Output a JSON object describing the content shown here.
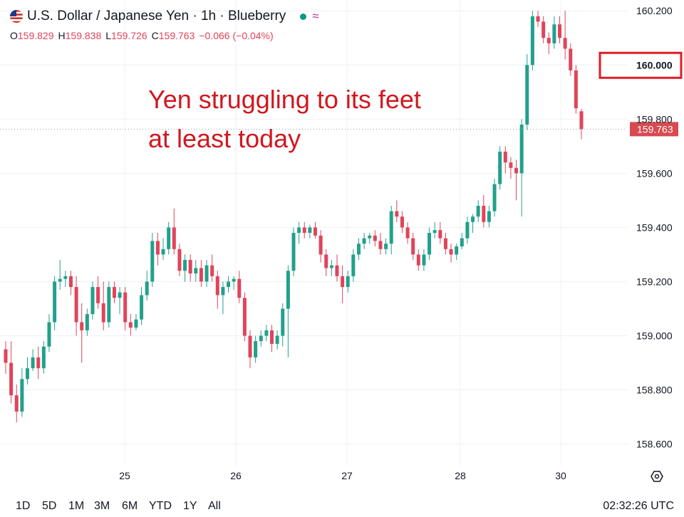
{
  "header": {
    "title": "U.S. Dollar / Japanese Yen · 1h · Blueberry",
    "status_color": "#089981",
    "wave_symbol": "≈",
    "wave_color": "#b6279f",
    "ohlc": [
      {
        "key": "O",
        "value": "159.829"
      },
      {
        "key": "H",
        "value": "159.838"
      },
      {
        "key": "L",
        "value": "159.726"
      },
      {
        "key": "C",
        "value": "159.763"
      },
      {
        "key": "",
        "value": "−0.066 (−0.04%)"
      }
    ]
  },
  "annotation": {
    "text": "Yen struggling to its feet\nat least today",
    "color": "#d0181f"
  },
  "price_tag": {
    "value": "159.763",
    "color": "#d84a52"
  },
  "highlight_box": {
    "label": "160.000",
    "color": "#e01c24"
  },
  "footer": {
    "ranges": [
      "1D",
      "5D",
      "1M",
      "3M",
      "6M",
      "YTD",
      "1Y",
      "All"
    ],
    "clock": "02:32:26 UTC"
  },
  "colors": {
    "up": "#22a08c",
    "down": "#e0445a",
    "grid": "#eef0f3",
    "axis_text": "#131722"
  },
  "chart_data": {
    "type": "candlestick",
    "title": "U.S. Dollar / Japanese Yen · 1h · Blueberry",
    "ylim": [
      158.52,
      160.24
    ],
    "y_ticks": [
      "158.600",
      "158.800",
      "159.000",
      "159.200",
      "159.400",
      "159.600",
      "159.800",
      "160.000",
      "160.200"
    ],
    "x_ticks": [
      "25",
      "26",
      "27",
      "28",
      "30"
    ],
    "grid": true,
    "last_price": 159.763,
    "series": [
      {
        "values": [
          [
            158.95,
            158.98,
            158.86,
            158.9
          ],
          [
            158.9,
            158.98,
            158.75,
            158.78
          ],
          [
            158.78,
            158.82,
            158.68,
            158.72
          ],
          [
            158.72,
            158.88,
            158.7,
            158.84
          ],
          [
            158.84,
            158.92,
            158.82,
            158.88
          ],
          [
            158.88,
            158.95,
            158.87,
            158.92
          ],
          [
            158.92,
            158.96,
            158.84,
            158.88
          ],
          [
            158.88,
            158.98,
            158.86,
            158.96
          ],
          [
            158.96,
            159.08,
            158.94,
            159.05
          ],
          [
            159.05,
            159.22,
            159.02,
            159.2
          ],
          [
            159.2,
            159.28,
            159.17,
            159.21
          ],
          [
            159.21,
            159.24,
            159.18,
            159.22
          ],
          [
            159.22,
            159.24,
            159.15,
            159.18
          ],
          [
            159.18,
            159.22,
            159.0,
            159.05
          ],
          [
            159.05,
            159.12,
            158.9,
            159.02
          ],
          [
            159.02,
            159.1,
            159.0,
            159.08
          ],
          [
            159.08,
            159.2,
            159.06,
            159.18
          ],
          [
            159.18,
            159.22,
            159.1,
            159.12
          ],
          [
            159.12,
            159.2,
            159.02,
            159.05
          ],
          [
            159.05,
            159.2,
            159.03,
            159.18
          ],
          [
            159.18,
            159.2,
            159.12,
            159.14
          ],
          [
            159.14,
            159.18,
            159.08,
            159.16
          ],
          [
            159.16,
            159.18,
            159.02,
            159.05
          ],
          [
            159.05,
            159.08,
            159.0,
            159.03
          ],
          [
            159.03,
            159.08,
            159.02,
            159.06
          ],
          [
            159.06,
            159.18,
            159.04,
            159.15
          ],
          [
            159.15,
            159.24,
            159.13,
            159.2
          ],
          [
            159.2,
            159.38,
            159.18,
            159.35
          ],
          [
            159.35,
            159.38,
            159.26,
            159.3
          ],
          [
            159.3,
            159.36,
            159.28,
            159.32
          ],
          [
            159.32,
            159.42,
            159.3,
            159.4
          ],
          [
            159.4,
            159.47,
            159.3,
            159.32
          ],
          [
            159.32,
            159.34,
            159.22,
            159.24
          ],
          [
            159.24,
            159.3,
            159.2,
            159.28
          ],
          [
            159.28,
            159.3,
            159.2,
            159.23
          ],
          [
            159.23,
            159.28,
            159.2,
            159.25
          ],
          [
            159.25,
            159.28,
            159.18,
            159.2
          ],
          [
            159.2,
            159.28,
            159.18,
            159.26
          ],
          [
            159.26,
            159.3,
            159.2,
            159.22
          ],
          [
            159.22,
            159.24,
            159.1,
            159.15
          ],
          [
            159.15,
            159.2,
            159.08,
            159.18
          ],
          [
            159.18,
            159.22,
            159.16,
            159.2
          ],
          [
            159.2,
            159.22,
            159.17,
            159.21
          ],
          [
            159.21,
            159.24,
            159.12,
            159.14
          ],
          [
            159.14,
            159.16,
            158.98,
            159.0
          ],
          [
            159.0,
            159.02,
            158.88,
            158.92
          ],
          [
            158.92,
            159.0,
            158.9,
            158.98
          ],
          [
            158.98,
            159.02,
            158.96,
            159.0
          ],
          [
            159.0,
            159.04,
            158.98,
            159.02
          ],
          [
            159.02,
            159.04,
            158.94,
            158.97
          ],
          [
            158.97,
            159.02,
            158.95,
            159.0
          ],
          [
            159.0,
            159.12,
            158.96,
            159.1
          ],
          [
            159.1,
            159.26,
            158.92,
            159.24
          ],
          [
            159.24,
            159.4,
            159.22,
            159.38
          ],
          [
            159.38,
            159.42,
            159.34,
            159.4
          ],
          [
            159.4,
            159.42,
            159.36,
            159.38
          ],
          [
            159.38,
            159.41,
            159.36,
            159.4
          ],
          [
            159.4,
            159.42,
            159.36,
            159.37
          ],
          [
            159.37,
            159.39,
            159.27,
            159.3
          ],
          [
            159.3,
            159.32,
            159.22,
            159.25
          ],
          [
            159.25,
            159.28,
            159.22,
            159.26
          ],
          [
            159.26,
            159.3,
            159.2,
            159.22
          ],
          [
            159.22,
            159.26,
            159.12,
            159.18
          ],
          [
            159.18,
            159.24,
            159.16,
            159.22
          ],
          [
            159.22,
            159.32,
            159.2,
            159.3
          ],
          [
            159.3,
            159.36,
            159.28,
            159.34
          ],
          [
            159.34,
            159.38,
            159.32,
            159.36
          ],
          [
            159.36,
            159.38,
            159.34,
            159.37
          ],
          [
            159.37,
            159.39,
            159.33,
            159.35
          ],
          [
            159.35,
            159.38,
            159.3,
            159.32
          ],
          [
            159.32,
            159.36,
            159.3,
            159.34
          ],
          [
            159.34,
            159.48,
            159.3,
            159.46
          ],
          [
            159.46,
            159.5,
            159.42,
            159.44
          ],
          [
            159.44,
            159.46,
            159.38,
            159.4
          ],
          [
            159.4,
            159.42,
            159.34,
            159.36
          ],
          [
            159.36,
            159.38,
            159.28,
            159.3
          ],
          [
            159.3,
            159.32,
            159.24,
            159.26
          ],
          [
            159.26,
            159.32,
            159.24,
            159.3
          ],
          [
            159.3,
            159.4,
            159.28,
            159.38
          ],
          [
            159.38,
            159.42,
            159.36,
            159.39
          ],
          [
            159.39,
            159.42,
            159.34,
            159.36
          ],
          [
            159.36,
            159.38,
            159.3,
            159.32
          ],
          [
            159.32,
            159.34,
            159.27,
            159.3
          ],
          [
            159.3,
            159.34,
            159.28,
            159.33
          ],
          [
            159.33,
            159.38,
            159.32,
            159.36
          ],
          [
            159.36,
            159.44,
            159.34,
            159.42
          ],
          [
            159.42,
            159.45,
            159.38,
            159.44
          ],
          [
            159.44,
            159.5,
            159.42,
            159.48
          ],
          [
            159.48,
            159.52,
            159.4,
            159.42
          ],
          [
            159.42,
            159.48,
            159.4,
            159.46
          ],
          [
            159.46,
            159.58,
            159.44,
            159.56
          ],
          [
            159.56,
            159.7,
            159.54,
            159.68
          ],
          [
            159.68,
            159.7,
            159.6,
            159.64
          ],
          [
            159.64,
            159.66,
            159.58,
            159.62
          ],
          [
            159.62,
            159.65,
            159.5,
            159.6
          ],
          [
            159.6,
            159.8,
            159.44,
            159.78
          ],
          [
            159.78,
            160.04,
            159.76,
            160.0
          ],
          [
            160.0,
            160.2,
            159.98,
            160.18
          ],
          [
            160.18,
            160.2,
            160.14,
            160.16
          ],
          [
            160.16,
            160.18,
            160.08,
            160.1
          ],
          [
            160.1,
            160.12,
            160.04,
            160.08
          ],
          [
            160.08,
            160.18,
            160.06,
            160.15
          ],
          [
            160.15,
            160.18,
            160.08,
            160.1
          ],
          [
            160.1,
            160.2,
            160.02,
            160.06
          ],
          [
            160.06,
            160.08,
            159.96,
            159.98
          ],
          [
            159.98,
            160.0,
            159.82,
            159.84
          ],
          [
            159.829,
            159.838,
            159.726,
            159.763
          ]
        ]
      }
    ]
  }
}
